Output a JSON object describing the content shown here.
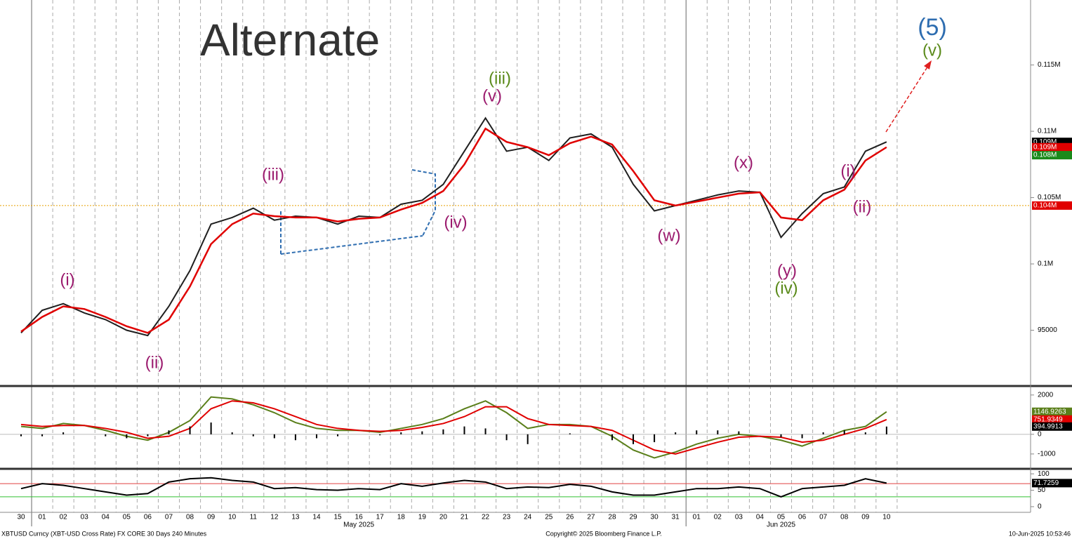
{
  "title": "Alternate",
  "footer": {
    "left": "XBTUSD Curncy (XBT-USD Cross Rate) FX CORE 30 Days 240 Minutes",
    "center": "Copyright© 2025 Bloomberg Finance L.P.",
    "right": "10-Jun-2025 10:53:46"
  },
  "categories": [
    "30",
    "01",
    "02",
    "03",
    "04",
    "05",
    "06",
    "07",
    "08",
    "09",
    "10",
    "11",
    "12",
    "13",
    "14",
    "15",
    "16",
    "17",
    "18",
    "19",
    "20",
    "21",
    "22",
    "23",
    "24",
    "25",
    "26",
    "27",
    "28",
    "29",
    "30",
    "31",
    "01",
    "02",
    "03",
    "04",
    "05",
    "06",
    "07",
    "08",
    "09",
    "10"
  ],
  "months": [
    "May 2025",
    "Jun 2025"
  ],
  "annotations": [
    {
      "text": "(i)",
      "color": "#9b1b6e"
    },
    {
      "text": "(ii)",
      "color": "#9b1b6e"
    },
    {
      "text": "(iii)",
      "color": "#9b1b6e"
    },
    {
      "text": "(iv)",
      "color": "#9b1b6e"
    },
    {
      "text": "(v)",
      "color": "#9b1b6e"
    },
    {
      "text": "(iii)",
      "color": "#5a8a1a"
    },
    {
      "text": "(w)",
      "color": "#9b1b6e"
    },
    {
      "text": "(x)",
      "color": "#9b1b6e"
    },
    {
      "text": "(y)",
      "color": "#9b1b6e"
    },
    {
      "text": "(iv)",
      "color": "#5a8a1a"
    },
    {
      "text": "(i)",
      "color": "#9b1b6e"
    },
    {
      "text": "(ii)",
      "color": "#9b1b6e"
    },
    {
      "text": "(5)",
      "color": "#2e6db0"
    },
    {
      "text": "(v)",
      "color": "#5a8a1a"
    }
  ],
  "chart_data": [
    {
      "type": "line",
      "ylim": [
        90900,
        119900
      ],
      "yticks": [
        95000,
        {
          "value": 100000,
          "label": "0.1M"
        },
        {
          "value": 105000,
          "label": "0.105M"
        },
        {
          "value": 110000,
          "label": "0.11M"
        },
        {
          "value": 115000,
          "label": "0.115M"
        }
      ],
      "hline": {
        "value": 104400,
        "color": "#e8a000"
      },
      "price_tags": [
        {
          "value": 109200,
          "label": "0.109M",
          "color": "#000000"
        },
        {
          "value": 108800,
          "label": "0.109M",
          "color": "#e00000"
        },
        {
          "value": 108200,
          "label": "0.108M",
          "color": "#1a8a1a"
        },
        {
          "value": 104400,
          "label": "0.104M",
          "color": "#e00000"
        }
      ],
      "series": [
        {
          "color": "#1f1f1f",
          "values": [
            94800,
            96500,
            97000,
            96300,
            95800,
            95000,
            94600,
            96800,
            99500,
            103000,
            103500,
            104200,
            103300,
            103600,
            103500,
            103000,
            103600,
            103500,
            104500,
            104800,
            106000,
            108500,
            111000,
            108500,
            108800,
            107800,
            109500,
            109800,
            108800,
            106000,
            104000,
            104400,
            104800,
            105200,
            105500,
            105400,
            102000,
            103800,
            105300,
            105800,
            108500,
            109200
          ]
        },
        {
          "color": "#e00000",
          "values": [
            94900,
            96000,
            96800,
            96600,
            96000,
            95300,
            94800,
            95800,
            98300,
            101500,
            103000,
            103800,
            103600,
            103500,
            103500,
            103200,
            103400,
            103500,
            104100,
            104600,
            105500,
            107500,
            110200,
            109200,
            108800,
            108200,
            109100,
            109600,
            109000,
            107000,
            104800,
            104400,
            104700,
            105000,
            105300,
            105400,
            103500,
            103300,
            104800,
            105600,
            107800,
            108800
          ]
        }
      ]
    },
    {
      "type": "line",
      "ylim": [
        -1684,
        2386
      ],
      "yticks": [
        2000,
        0,
        -1000
      ],
      "series": [
        {
          "color": "#5a7f1a",
          "values": [
            400,
            300,
            550,
            450,
            200,
            -100,
            -300,
            100,
            700,
            1900,
            1800,
            1500,
            1100,
            600,
            300,
            200,
            200,
            100,
            300,
            500,
            800,
            1300,
            1700,
            1100,
            300,
            500,
            500,
            400,
            -100,
            -800,
            -1200,
            -900,
            -500,
            -200,
            0,
            -100,
            -300,
            -600,
            -200,
            200,
            400,
            1146.9263
          ]
        },
        {
          "color": "#e00000",
          "values": [
            500,
            400,
            450,
            450,
            300,
            100,
            -200,
            -100,
            300,
            1300,
            1700,
            1600,
            1300,
            900,
            500,
            300,
            200,
            150,
            200,
            350,
            550,
            900,
            1400,
            1400,
            800,
            500,
            450,
            400,
            200,
            -300,
            -800,
            -1000,
            -700,
            -400,
            -150,
            -100,
            -150,
            -400,
            -300,
            0,
            300,
            751.9349
          ]
        },
        {
          "type": "bar",
          "color": "#000000",
          "values": [
            -100,
            -100,
            100,
            0,
            -100,
            -200,
            -100,
            200,
            400,
            600,
            100,
            -100,
            -200,
            -300,
            -200,
            -100,
            0,
            -50,
            100,
            150,
            250,
            400,
            300,
            -300,
            -500,
            0,
            50,
            0,
            -300,
            -500,
            -400,
            100,
            200,
            200,
            150,
            0,
            -150,
            -200,
            100,
            200,
            100,
            394.9913
          ]
        }
      ]
    },
    {
      "type": "line",
      "ylim": [
        -13,
        111
      ],
      "yticks": [
        100,
        50,
        0
      ],
      "hlines": [
        {
          "value": 70,
          "color": "#e04040"
        },
        {
          "value": 30,
          "color": "#30c030"
        }
      ],
      "series": [
        {
          "color": "#000000",
          "values": [
            55,
            70,
            65,
            55,
            45,
            35,
            40,
            75,
            85,
            88,
            80,
            75,
            55,
            58,
            52,
            50,
            55,
            52,
            70,
            62,
            72,
            80,
            75,
            55,
            60,
            58,
            68,
            62,
            45,
            35,
            35,
            45,
            55,
            55,
            60,
            55,
            30,
            55,
            60,
            65,
            85,
            71.7259
          ]
        }
      ]
    }
  ]
}
